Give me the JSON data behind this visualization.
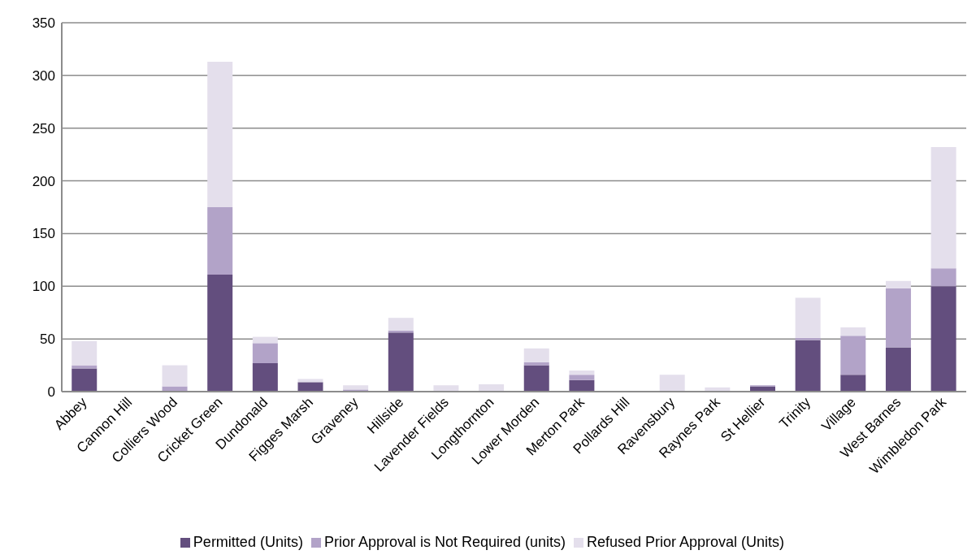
{
  "chart_data": {
    "type": "bar",
    "stacked": true,
    "categories": [
      "Abbey",
      "Cannon Hill",
      "Colliers Wood",
      "Cricket Green",
      "Dundonald",
      "Figges Marsh",
      "Graveney",
      "Hillside",
      "Lavender Fields",
      "Longthornton",
      "Lower Morden",
      "Merton Park",
      "Pollards Hill",
      "Ravensbury",
      "Raynes Park",
      "St Hellier",
      "Trinity",
      "Village",
      "West Barnes",
      "Wimbledon Park"
    ],
    "series": [
      {
        "name": "Permitted (Units)",
        "color": "#634e7e",
        "values": [
          22,
          0,
          0,
          111,
          27,
          9,
          0,
          56,
          0,
          0,
          25,
          11,
          0,
          0,
          0,
          5,
          49,
          16,
          42,
          100
        ]
      },
      {
        "name": "Prior Approval is Not Required (units)",
        "color": "#b2a3c8",
        "values": [
          3,
          0,
          5,
          64,
          19,
          0,
          2,
          2,
          null,
          0,
          3,
          5,
          0,
          0,
          0,
          1,
          2,
          37,
          56,
          17
        ]
      },
      {
        "name": "Refused Prior Approval (Units)",
        "color": "#e4dfec",
        "values": [
          23,
          0,
          20,
          138,
          6,
          3,
          4,
          12,
          6,
          7,
          13,
          4,
          0,
          16,
          4,
          null,
          38,
          8,
          7,
          115
        ]
      }
    ],
    "ylim": [
      0,
      350
    ],
    "yticks": [
      0,
      50,
      100,
      150,
      200,
      250,
      300,
      350
    ],
    "grid": "y",
    "legend": "bottom"
  }
}
